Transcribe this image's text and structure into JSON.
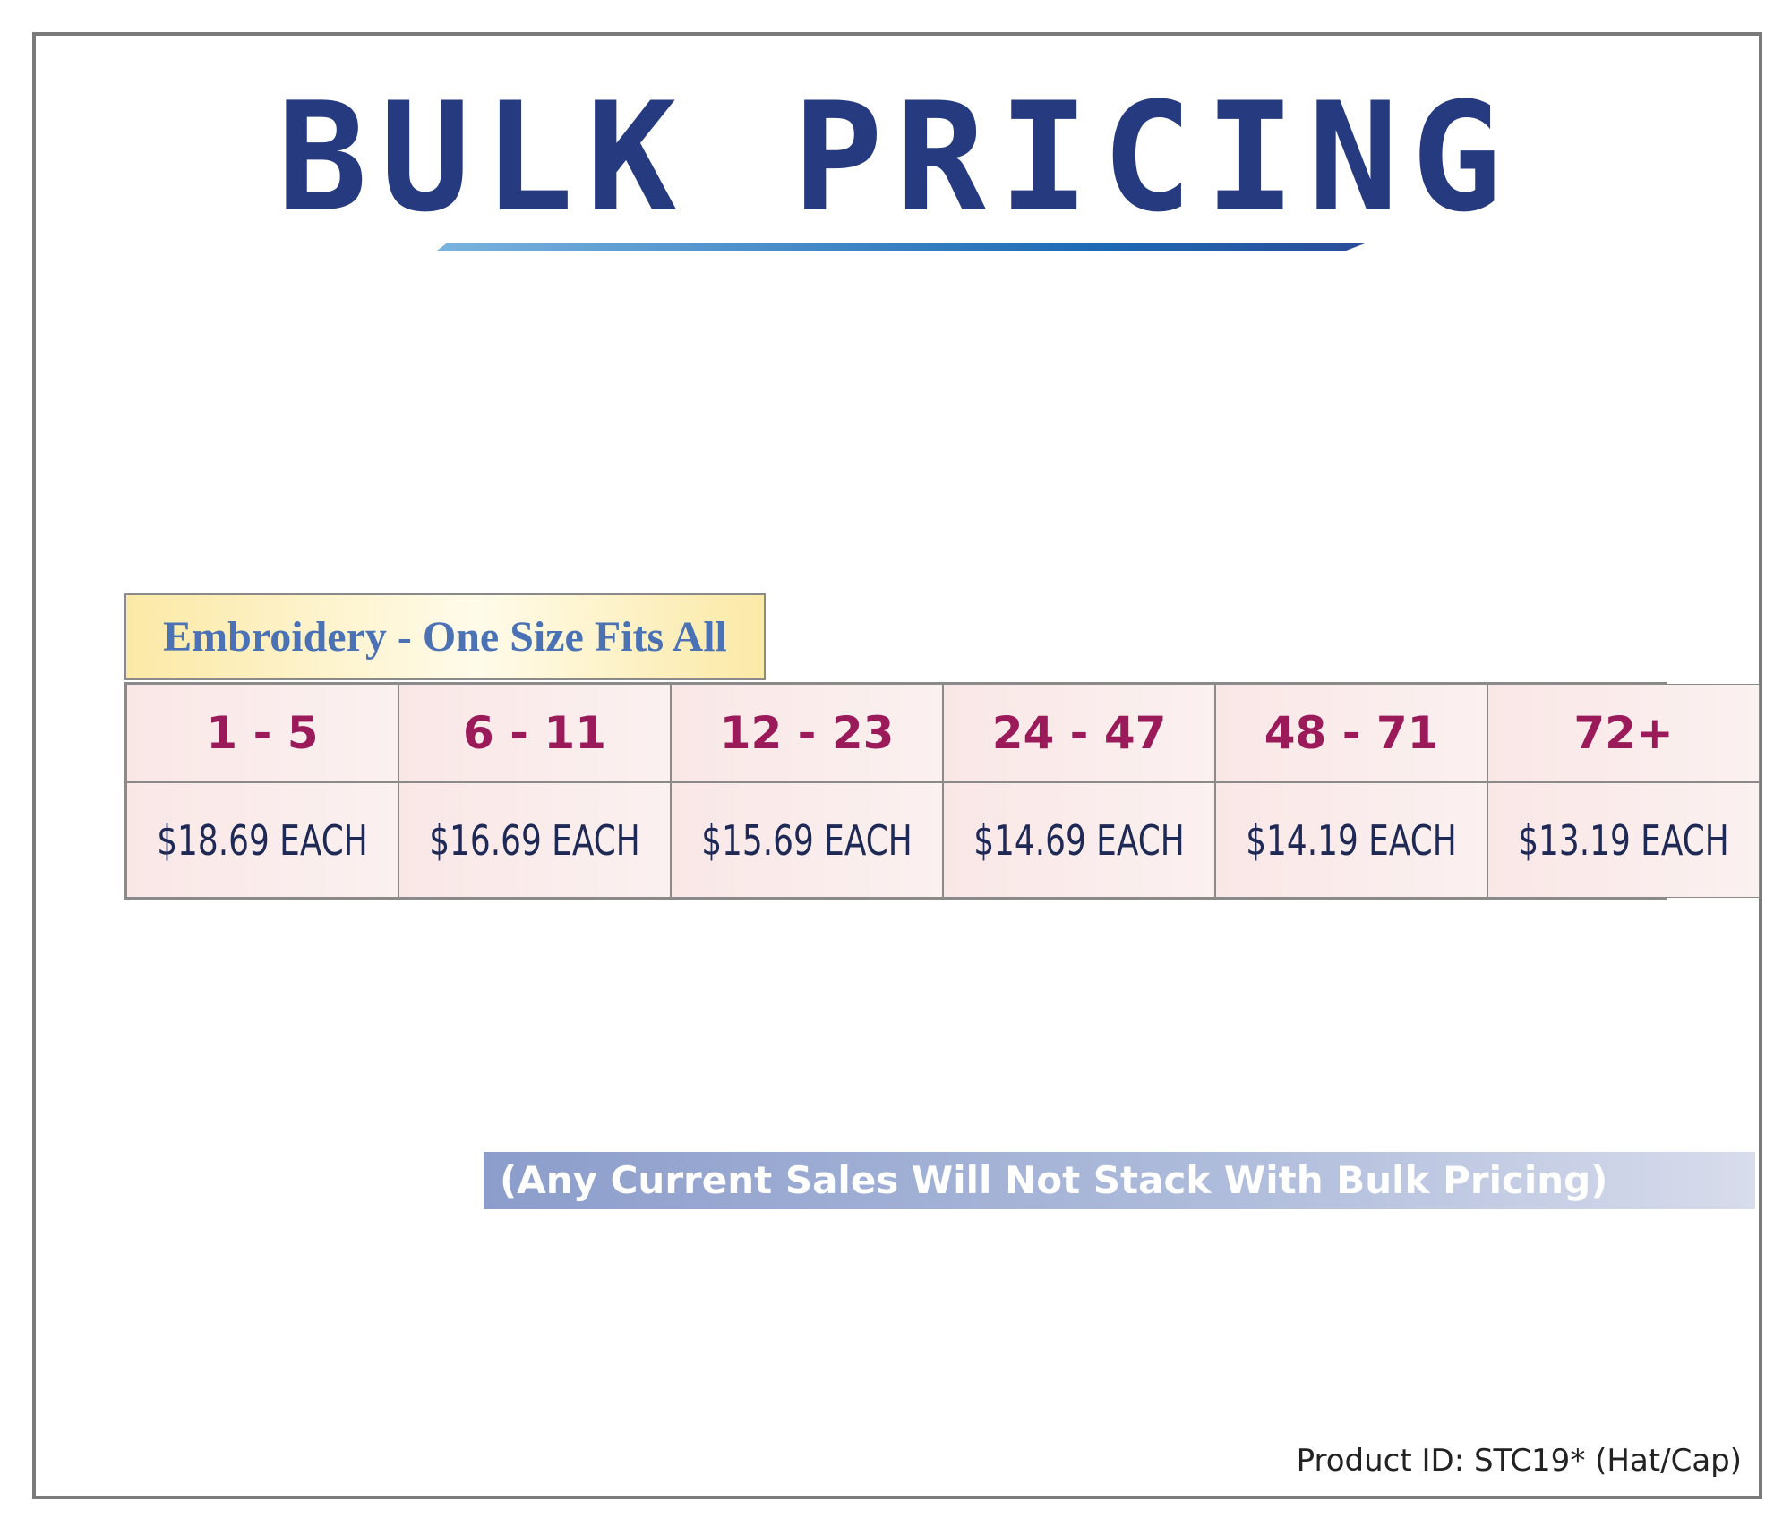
{
  "header": {
    "title": "BULK PRICING"
  },
  "table": {
    "caption": "Embroidery - One Size Fits All",
    "quantities": [
      "1 - 5",
      "6 - 11",
      "12 - 23",
      "24 - 47",
      "48 - 71",
      "72+"
    ],
    "prices": [
      "$18.69 EACH",
      "$16.69 EACH",
      "$15.69 EACH",
      "$14.69 EACH",
      "$14.19 EACH",
      "$13.19 EACH"
    ]
  },
  "note": "(Any Current Sales Will Not Stack With Bulk Pricing)",
  "footer": {
    "product_id": "Product ID: STC19* (Hat/Cap)"
  }
}
